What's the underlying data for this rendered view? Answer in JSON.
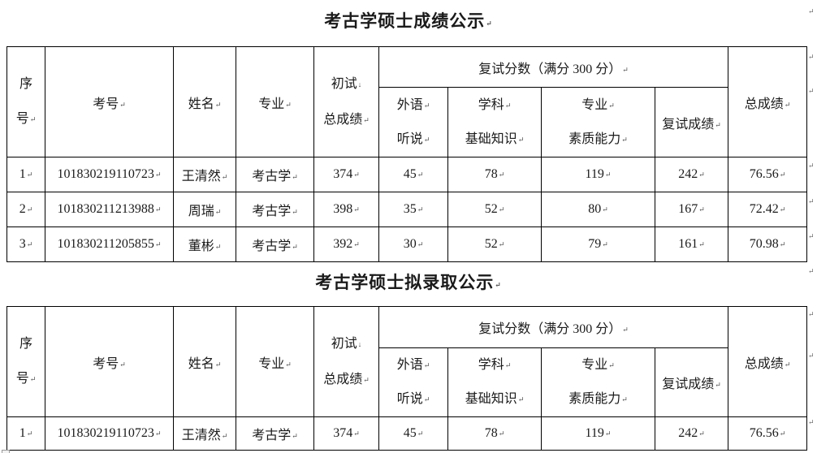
{
  "page": {
    "background": "#ffffff",
    "text_color": "#1a1a1a",
    "border_color": "#000000"
  },
  "marks": {
    "cell_end": "↵",
    "line_break": "↓",
    "row_end": "↵",
    "title_end": "↵"
  },
  "header": {
    "top_cells": [
      {
        "name": "seq",
        "rowspan": 2,
        "colspan": 1,
        "two_line": "big",
        "lines": [
          {
            "t": "序"
          },
          {
            "t": "号",
            "m": "cell_end"
          }
        ]
      },
      {
        "name": "exam-no",
        "rowspan": 2,
        "colspan": 1,
        "lines": [
          {
            "t": "考号",
            "m": "cell_end"
          }
        ]
      },
      {
        "name": "name",
        "rowspan": 2,
        "colspan": 1,
        "lines": [
          {
            "t": "姓名",
            "m": "cell_end"
          }
        ]
      },
      {
        "name": "major",
        "rowspan": 2,
        "colspan": 1,
        "lines": [
          {
            "t": "专业",
            "m": "cell_end"
          }
        ]
      },
      {
        "name": "initial-total",
        "rowspan": 2,
        "colspan": 1,
        "two_line": "big",
        "lines": [
          {
            "t": "初试",
            "m": "line_break"
          },
          {
            "t": "总成绩",
            "m": "cell_end"
          }
        ]
      },
      {
        "name": "retest-group",
        "rowspan": 1,
        "colspan": 4,
        "lines": [
          {
            "t": "复试分数（满分 300 分）",
            "m": "cell_end"
          }
        ]
      },
      {
        "name": "total-score",
        "rowspan": 2,
        "colspan": 1,
        "lines": [
          {
            "t": "总成绩",
            "m": "cell_end"
          }
        ]
      }
    ],
    "sub_cells": [
      {
        "name": "foreign-listening",
        "two_line": "sub",
        "lines": [
          {
            "t": "外语",
            "m": "cell_end"
          },
          {
            "t": "听说",
            "m": "cell_end"
          }
        ]
      },
      {
        "name": "subject-basics",
        "two_line": "sub",
        "lines": [
          {
            "t": "学科",
            "m": "cell_end"
          },
          {
            "t": "基础知识",
            "m": "cell_end"
          }
        ]
      },
      {
        "name": "professional-quality",
        "two_line": "sub",
        "lines": [
          {
            "t": "专业",
            "m": "cell_end"
          },
          {
            "t": "素质能力",
            "m": "cell_end"
          }
        ]
      },
      {
        "name": "retest-score",
        "lines": [
          {
            "t": "复试成绩",
            "m": "cell_end"
          }
        ]
      }
    ],
    "column_names": [
      "seq",
      "exam-no",
      "name",
      "major",
      "initial-total",
      "foreign-listening",
      "subject-basics",
      "professional-quality",
      "retest-score",
      "total-score"
    ]
  },
  "sections": [
    {
      "title": "考古学硕士成绩公示",
      "rows": [
        [
          "1",
          "101830219110723",
          "王清然",
          "考古学",
          "374",
          "45",
          "78",
          "119",
          "242",
          "76.56"
        ],
        [
          "2",
          "101830211213988",
          "周瑞",
          "考古学",
          "398",
          "35",
          "52",
          "80",
          "167",
          "72.42"
        ],
        [
          "3",
          "101830211205855",
          "董彬",
          "考古学",
          "392",
          "30",
          "52",
          "79",
          "161",
          "70.98"
        ]
      ]
    },
    {
      "title": "考古学硕士拟录取公示",
      "rows": [
        [
          "1",
          "101830219110723",
          "王清然",
          "考古学",
          "374",
          "45",
          "78",
          "119",
          "242",
          "76.56"
        ]
      ]
    }
  ],
  "edge_marks_y": [
    10,
    66,
    108,
    200,
    244,
    287,
    330,
    383,
    434,
    516
  ]
}
